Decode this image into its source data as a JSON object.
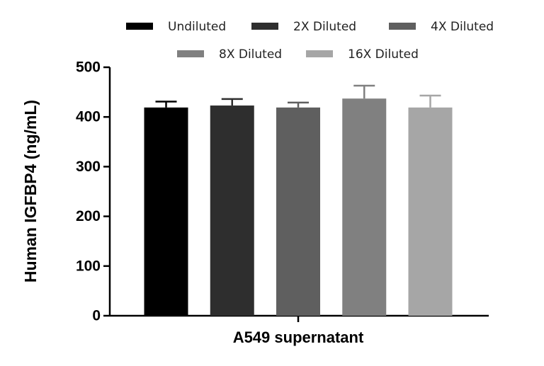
{
  "chart_data": {
    "type": "bar",
    "categories": [
      "A549 supernatant"
    ],
    "x_label": "A549 supernatant",
    "y_label": "Human IGFBP4 (ng/mL)",
    "ylim": [
      0,
      500
    ],
    "yticks": [
      0,
      100,
      200,
      300,
      400,
      500
    ],
    "series": [
      {
        "name": "Undiluted",
        "color": "#000000",
        "values": [
          419
        ],
        "errors": [
          12
        ]
      },
      {
        "name": "2X Diluted",
        "color": "#2e2e2e",
        "values": [
          423
        ],
        "errors": [
          13
        ]
      },
      {
        "name": "4X Diluted",
        "color": "#5f5f5f",
        "values": [
          419
        ],
        "errors": [
          10
        ]
      },
      {
        "name": "8X Diluted",
        "color": "#808080",
        "values": [
          437
        ],
        "errors": [
          26
        ]
      },
      {
        "name": "16X Diluted",
        "color": "#a6a6a6",
        "values": [
          419
        ],
        "errors": [
          24
        ]
      }
    ]
  }
}
